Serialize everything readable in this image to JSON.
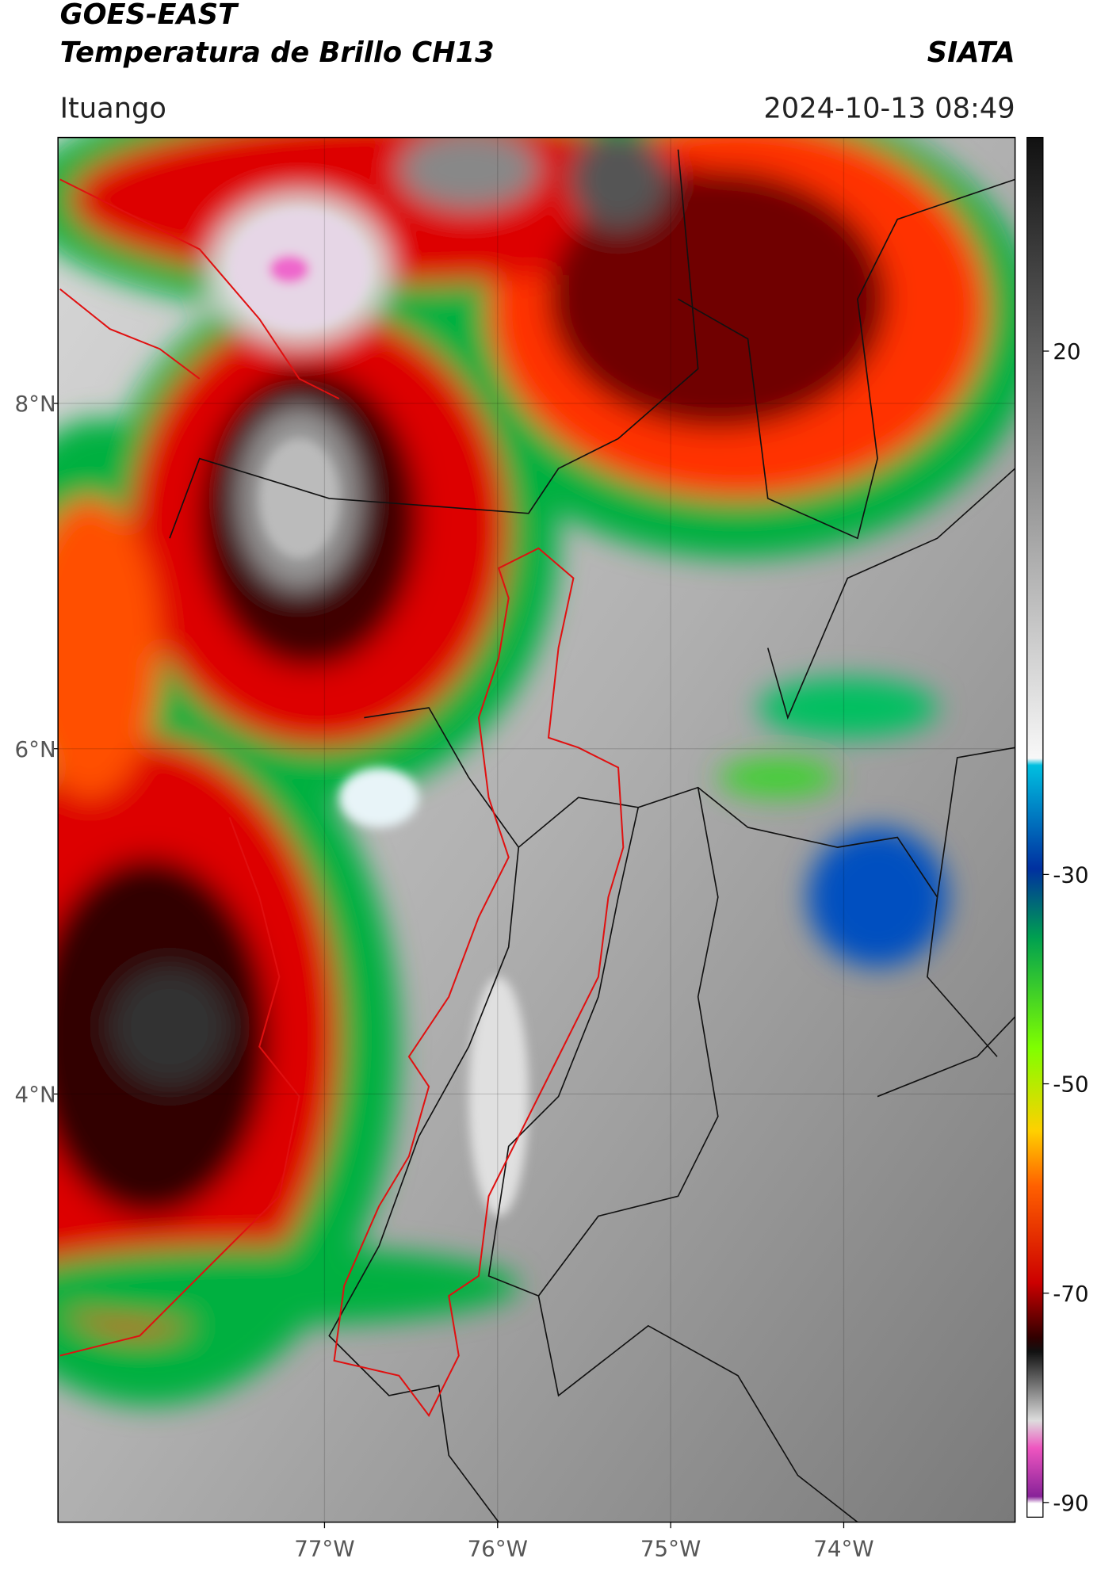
{
  "header": {
    "title": "GOES-EAST",
    "subtitle": "Temperatura de Brillo CH13",
    "brand": "SIATA",
    "location": "Ituango",
    "datetime": "2024-10-13 08:49"
  },
  "map": {
    "xlim": [
      -78.54,
      -73.01
    ],
    "ylim": [
      1.52,
      9.54
    ],
    "xticks": [
      {
        "value": -77,
        "label": "77°W"
      },
      {
        "value": -76,
        "label": "76°W"
      },
      {
        "value": -75,
        "label": "75°W"
      },
      {
        "value": -74,
        "label": "74°W"
      }
    ],
    "yticks": [
      {
        "value": 8,
        "label": "8°N"
      },
      {
        "value": 6,
        "label": "6°N"
      },
      {
        "value": 4,
        "label": "4°N"
      }
    ]
  },
  "colorbar": {
    "lim": [
      -91.4,
      40.4
    ],
    "ticks": [
      20,
      -30,
      -50,
      -70,
      -90
    ]
  }
}
